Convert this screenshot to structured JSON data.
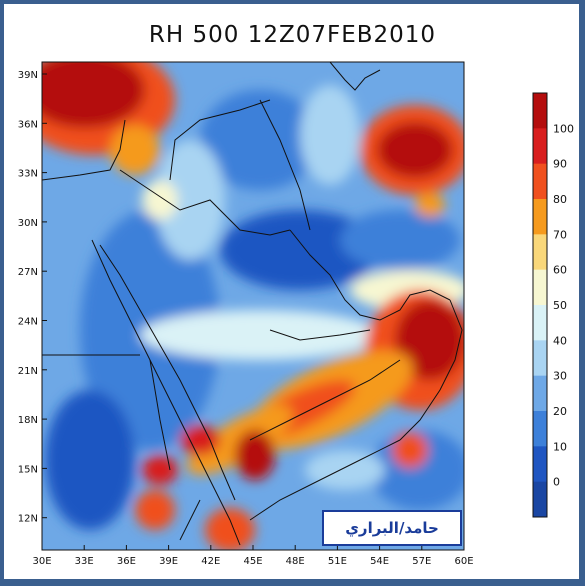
{
  "title": "RH 500 12Z07FEB2010",
  "credit": "حامد/البراري",
  "axes": {
    "x_ticks": [
      "30E",
      "33E",
      "36E",
      "39E",
      "42E",
      "45E",
      "48E",
      "51E",
      "54E",
      "57E",
      "60E"
    ],
    "y_ticks": [
      "39N",
      "36N",
      "33N",
      "30N",
      "27N",
      "24N",
      "21N",
      "18N",
      "15N",
      "12N"
    ]
  },
  "colorbar": {
    "labels": [
      "100",
      "90",
      "80",
      "70",
      "60",
      "50",
      "40",
      "30",
      "20",
      "10",
      "0"
    ],
    "colors": [
      "#b40d0d",
      "#d81e1e",
      "#f0501e",
      "#f59a1e",
      "#f9d77a",
      "#f7f7d2",
      "#daf2f6",
      "#a9d4f2",
      "#6ea8e6",
      "#3d80d9",
      "#1f56c2",
      "#1a46a3"
    ]
  },
  "map_fields": {
    "base_color": "#6ea8e6"
  }
}
